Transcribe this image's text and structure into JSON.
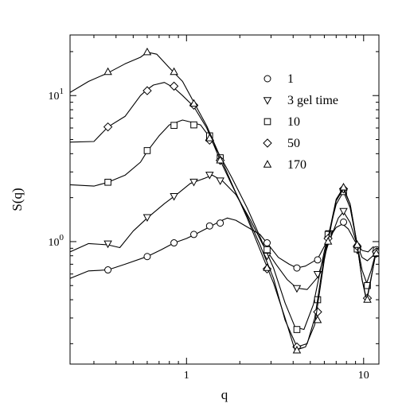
{
  "chart_data": {
    "type": "line",
    "xlabel": "q",
    "ylabel": "S(q)",
    "xscale": "log",
    "yscale": "log",
    "xlim": [
      0.22,
      12.2
    ],
    "ylim": [
      0.145,
      26
    ],
    "x_tick_labels": [
      {
        "value": 1,
        "text": "1"
      },
      {
        "value": 10,
        "text": "10"
      }
    ],
    "y_tick_labels": [
      {
        "value": 1,
        "base": "10",
        "exp": "0"
      },
      {
        "value": 10,
        "base": "10",
        "exp": "1"
      }
    ],
    "legend_placement": "top-right",
    "grid": false,
    "series": [
      {
        "name": "1",
        "marker": "circle",
        "line": [
          [
            0.22,
            0.56
          ],
          [
            0.28,
            0.63
          ],
          [
            0.36,
            0.64
          ],
          [
            0.45,
            0.7
          ],
          [
            0.6,
            0.79
          ],
          [
            0.72,
            0.88
          ],
          [
            0.85,
            0.98
          ],
          [
            1.0,
            1.05
          ],
          [
            1.15,
            1.14
          ],
          [
            1.35,
            1.26
          ],
          [
            1.55,
            1.38
          ],
          [
            1.7,
            1.45
          ],
          [
            1.9,
            1.4
          ],
          [
            2.2,
            1.26
          ],
          [
            2.6,
            1.12
          ],
          [
            2.9,
            0.95
          ],
          [
            3.3,
            0.78
          ],
          [
            3.8,
            0.7
          ],
          [
            4.2,
            0.66
          ],
          [
            4.7,
            0.68
          ],
          [
            5.5,
            0.76
          ],
          [
            6.2,
            1.0
          ],
          [
            7.0,
            1.25
          ],
          [
            7.6,
            1.32
          ],
          [
            8.2,
            1.22
          ],
          [
            9.0,
            0.99
          ],
          [
            9.8,
            0.87
          ],
          [
            10.6,
            0.85
          ],
          [
            11.3,
            0.92
          ],
          [
            12.0,
            0.9
          ]
        ],
        "markers": [
          [
            0.36,
            0.64
          ],
          [
            0.6,
            0.79
          ],
          [
            0.85,
            0.98
          ],
          [
            1.1,
            1.12
          ],
          [
            1.35,
            1.28
          ],
          [
            1.55,
            1.34
          ],
          [
            2.85,
            0.98
          ],
          [
            4.2,
            0.66
          ],
          [
            5.5,
            0.75
          ],
          [
            6.3,
            1.07
          ],
          [
            7.7,
            1.36
          ],
          [
            9.2,
            0.93
          ],
          [
            11.8,
            0.88
          ]
        ]
      },
      {
        "name": "3 gel time",
        "marker": "triangle-down",
        "line": [
          [
            0.22,
            0.85
          ],
          [
            0.28,
            0.97
          ],
          [
            0.36,
            0.95
          ],
          [
            0.42,
            0.91
          ],
          [
            0.5,
            1.18
          ],
          [
            0.6,
            1.45
          ],
          [
            0.75,
            1.82
          ],
          [
            0.9,
            2.15
          ],
          [
            1.05,
            2.5
          ],
          [
            1.25,
            2.7
          ],
          [
            1.4,
            2.85
          ],
          [
            1.6,
            2.6
          ],
          [
            1.9,
            2.1
          ],
          [
            2.3,
            1.4
          ],
          [
            2.7,
            0.95
          ],
          [
            3.2,
            0.7
          ],
          [
            3.7,
            0.55
          ],
          [
            4.2,
            0.48
          ],
          [
            4.8,
            0.47
          ],
          [
            5.5,
            0.57
          ],
          [
            6.3,
            0.95
          ],
          [
            7.2,
            1.45
          ],
          [
            7.7,
            1.6
          ],
          [
            8.4,
            1.35
          ],
          [
            9.2,
            0.95
          ],
          [
            9.8,
            0.78
          ],
          [
            10.5,
            0.74
          ],
          [
            11.3,
            0.8
          ],
          [
            12.0,
            0.82
          ]
        ],
        "markers": [
          [
            0.36,
            0.97
          ],
          [
            0.6,
            1.47
          ],
          [
            0.85,
            2.05
          ],
          [
            1.1,
            2.57
          ],
          [
            1.35,
            2.87
          ],
          [
            1.55,
            2.62
          ],
          [
            2.85,
            0.8
          ],
          [
            4.2,
            0.48
          ],
          [
            5.5,
            0.6
          ],
          [
            6.4,
            1.14
          ],
          [
            7.7,
            1.62
          ],
          [
            9.2,
            0.88
          ],
          [
            11.8,
            0.83
          ]
        ]
      },
      {
        "name": "10",
        "marker": "square",
        "line": [
          [
            0.22,
            2.45
          ],
          [
            0.3,
            2.4
          ],
          [
            0.36,
            2.55
          ],
          [
            0.45,
            2.85
          ],
          [
            0.55,
            3.5
          ],
          [
            0.6,
            4.15
          ],
          [
            0.7,
            5.3
          ],
          [
            0.8,
            6.3
          ],
          [
            0.95,
            6.8
          ],
          [
            1.05,
            6.6
          ],
          [
            1.2,
            6.3
          ],
          [
            1.35,
            5.2
          ],
          [
            1.55,
            3.85
          ],
          [
            1.8,
            2.75
          ],
          [
            2.2,
            1.7
          ],
          [
            2.6,
            1.08
          ],
          [
            3.1,
            0.66
          ],
          [
            3.6,
            0.38
          ],
          [
            4.1,
            0.26
          ],
          [
            4.6,
            0.25
          ],
          [
            5.2,
            0.37
          ],
          [
            6.0,
            0.86
          ],
          [
            7.0,
            1.8
          ],
          [
            7.7,
            2.2
          ],
          [
            8.4,
            1.7
          ],
          [
            9.2,
            0.95
          ],
          [
            9.8,
            0.64
          ],
          [
            10.4,
            0.52
          ],
          [
            11.0,
            0.63
          ],
          [
            11.6,
            0.8
          ],
          [
            12.0,
            0.87
          ]
        ],
        "markers": [
          [
            0.36,
            2.55
          ],
          [
            0.6,
            4.2
          ],
          [
            0.85,
            6.25
          ],
          [
            1.1,
            6.3
          ],
          [
            1.35,
            5.3
          ],
          [
            1.55,
            3.75
          ],
          [
            2.85,
            0.88
          ],
          [
            4.2,
            0.25
          ],
          [
            5.5,
            0.4
          ],
          [
            6.3,
            1.12
          ],
          [
            7.7,
            2.2
          ],
          [
            9.2,
            0.89
          ],
          [
            10.5,
            0.5
          ],
          [
            11.8,
            0.83
          ]
        ]
      },
      {
        "name": "50",
        "marker": "diamond",
        "line": [
          [
            0.22,
            4.8
          ],
          [
            0.3,
            4.85
          ],
          [
            0.36,
            6.1
          ],
          [
            0.45,
            7.2
          ],
          [
            0.55,
            10.0
          ],
          [
            0.6,
            11.0
          ],
          [
            0.65,
            11.8
          ],
          [
            0.75,
            12.3
          ],
          [
            0.85,
            11.3
          ],
          [
            0.95,
            10.0
          ],
          [
            1.1,
            8.4
          ],
          [
            1.3,
            6.0
          ],
          [
            1.55,
            3.6
          ],
          [
            1.8,
            2.45
          ],
          [
            2.2,
            1.5
          ],
          [
            2.6,
            0.95
          ],
          [
            3.1,
            0.56
          ],
          [
            3.6,
            0.29
          ],
          [
            4.2,
            0.19
          ],
          [
            4.8,
            0.2
          ],
          [
            5.3,
            0.3
          ],
          [
            6.0,
            0.8
          ],
          [
            7.0,
            1.95
          ],
          [
            7.7,
            2.35
          ],
          [
            8.4,
            1.8
          ],
          [
            9.2,
            0.95
          ],
          [
            9.8,
            0.55
          ],
          [
            10.4,
            0.39
          ],
          [
            11.0,
            0.55
          ],
          [
            11.6,
            0.78
          ],
          [
            12.0,
            0.85
          ]
        ],
        "markers": [
          [
            0.36,
            6.1
          ],
          [
            0.6,
            10.8
          ],
          [
            0.85,
            11.6
          ],
          [
            1.1,
            8.6
          ],
          [
            1.35,
            4.95
          ],
          [
            1.55,
            3.6
          ],
          [
            2.85,
            0.65
          ],
          [
            4.2,
            0.19
          ],
          [
            5.5,
            0.33
          ],
          [
            6.3,
            1.05
          ],
          [
            7.7,
            2.3
          ],
          [
            9.2,
            0.93
          ],
          [
            10.5,
            0.41
          ],
          [
            11.8,
            0.85
          ]
        ]
      },
      {
        "name": "170",
        "marker": "triangle-up",
        "line": [
          [
            0.22,
            10.5
          ],
          [
            0.28,
            12.5
          ],
          [
            0.36,
            14.3
          ],
          [
            0.45,
            16.5
          ],
          [
            0.55,
            18.3
          ],
          [
            0.6,
            19.8
          ],
          [
            0.68,
            19.2
          ],
          [
            0.8,
            15.5
          ],
          [
            0.95,
            12.5
          ],
          [
            1.1,
            9.0
          ],
          [
            1.3,
            6.2
          ],
          [
            1.55,
            3.8
          ],
          [
            1.8,
            2.5
          ],
          [
            2.2,
            1.45
          ],
          [
            2.6,
            0.88
          ],
          [
            3.1,
            0.52
          ],
          [
            3.6,
            0.3
          ],
          [
            4.1,
            0.18
          ],
          [
            4.7,
            0.19
          ],
          [
            5.3,
            0.27
          ],
          [
            6.0,
            0.75
          ],
          [
            7.0,
            1.9
          ],
          [
            7.7,
            2.3
          ],
          [
            8.4,
            1.8
          ],
          [
            9.2,
            0.95
          ],
          [
            9.8,
            0.55
          ],
          [
            10.4,
            0.4
          ],
          [
            11.0,
            0.56
          ],
          [
            11.6,
            0.78
          ],
          [
            12.0,
            0.85
          ]
        ],
        "markers": [
          [
            0.36,
            14.5
          ],
          [
            0.6,
            19.8
          ],
          [
            0.85,
            14.5
          ],
          [
            1.1,
            8.8
          ],
          [
            1.35,
            5.1
          ],
          [
            1.55,
            3.6
          ],
          [
            2.85,
            0.66
          ],
          [
            4.2,
            0.18
          ],
          [
            5.5,
            0.29
          ],
          [
            6.3,
            1.0
          ],
          [
            7.7,
            2.35
          ],
          [
            9.2,
            0.95
          ],
          [
            10.5,
            0.4
          ],
          [
            11.8,
            0.83
          ]
        ]
      }
    ]
  }
}
